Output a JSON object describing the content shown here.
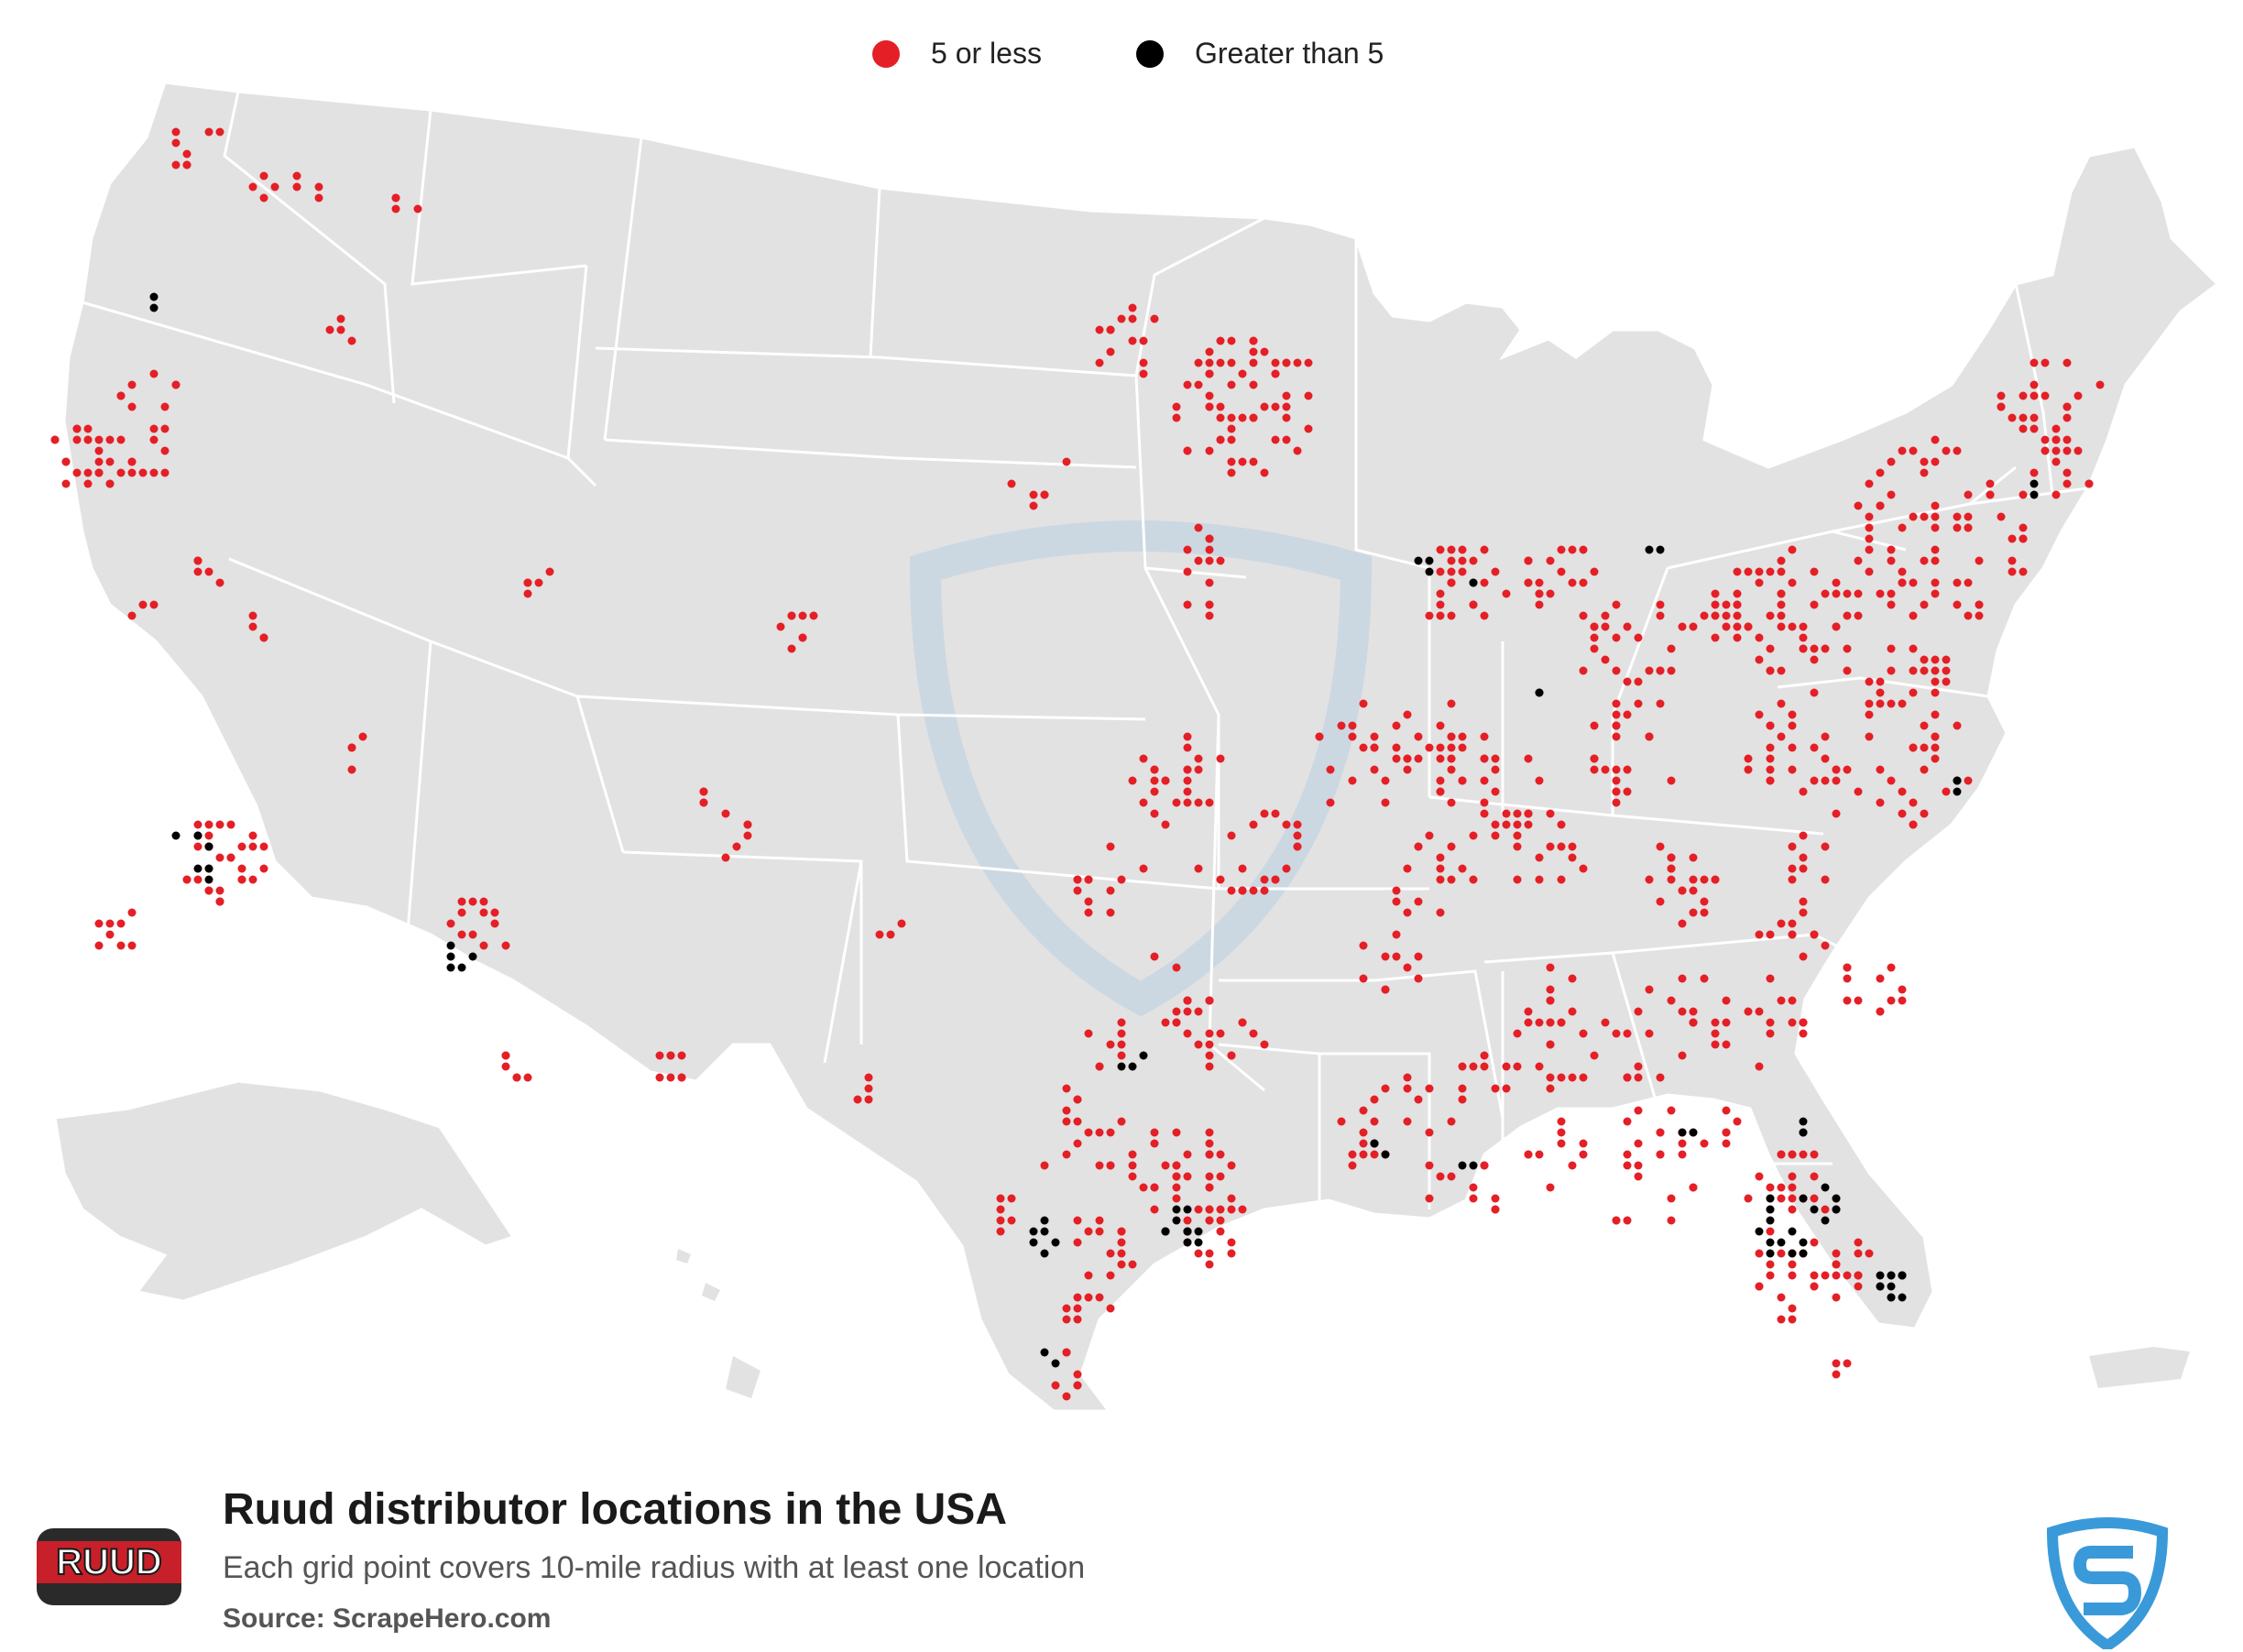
{
  "legend": {
    "items": [
      {
        "label": "5 or less",
        "color": "#e41f26"
      },
      {
        "label": "Greater than 5",
        "color": "#000000"
      }
    ]
  },
  "footer": {
    "title": "Ruud distributor locations in the USA",
    "subtitle": "Each grid point covers 10-mile radius with at least one location",
    "source_prefix": "Source:",
    "source_name": "ScrapeHero.com",
    "brand_logo_text": "RUUD"
  },
  "colors": {
    "land": "#e2e2e2",
    "border": "#ffffff",
    "red_dot": "#e41f26",
    "black_dot": "#000000",
    "watermark": "#b9cfe0",
    "scrapehero_blue": "#3a9ad9"
  },
  "icons": {
    "brand_logo": "ruud-logo-icon",
    "source_logo": "scrapehero-shield-icon",
    "watermark": "scrapehero-watermark-icon"
  }
}
